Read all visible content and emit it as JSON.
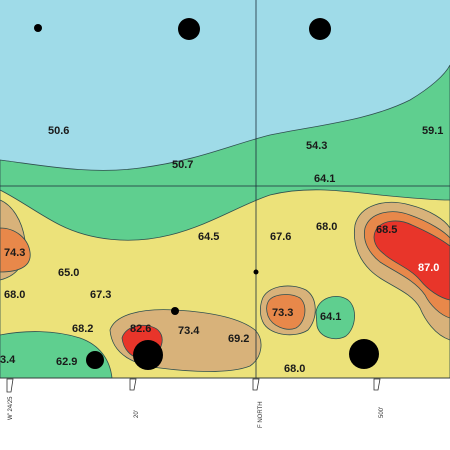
{
  "map": {
    "colors": {
      "band_50": "#9fdbe8",
      "band_64": "#5fcf8f",
      "band_67": "#ece27a",
      "band_70": "#d8b27a",
      "band_73": "#e8884a",
      "band_87": "#e8352a",
      "contour_line": "#2f4f4f",
      "marker": "#000000",
      "grid_line": "#1c2c3a"
    },
    "values": [
      {
        "id": "v1",
        "text": "50.6"
      },
      {
        "id": "v2",
        "text": "50.7"
      },
      {
        "id": "v3",
        "text": "54.3"
      },
      {
        "id": "v4",
        "text": "59.1"
      },
      {
        "id": "v5",
        "text": "64.1"
      },
      {
        "id": "v6",
        "text": "64.5"
      },
      {
        "id": "v7",
        "text": "67.6"
      },
      {
        "id": "v8",
        "text": "68.0"
      },
      {
        "id": "v9",
        "text": "68.5"
      },
      {
        "id": "v10",
        "text": "87.0"
      },
      {
        "id": "v11",
        "text": "74.3"
      },
      {
        "id": "v12",
        "text": "65.0"
      },
      {
        "id": "v13",
        "text": "68.0"
      },
      {
        "id": "v14",
        "text": "67.3"
      },
      {
        "id": "v15",
        "text": "68.2"
      },
      {
        "id": "v16",
        "text": "82.6"
      },
      {
        "id": "v17",
        "text": "73.4"
      },
      {
        "id": "v18",
        "text": "69.2"
      },
      {
        "id": "v19",
        "text": "73.3"
      },
      {
        "id": "v20",
        "text": "64.1"
      },
      {
        "id": "v21",
        "text": "68.0"
      },
      {
        "id": "v22",
        "text": "62.9"
      },
      {
        "id": "v23",
        "text": "3.4"
      }
    ],
    "axis_ticks": [
      {
        "id": "t1",
        "text": "W' 24/25"
      },
      {
        "id": "t2",
        "text": "20'"
      },
      {
        "id": "t3",
        "text": "F NORTH"
      },
      {
        "id": "t4",
        "text": "500'"
      }
    ]
  }
}
